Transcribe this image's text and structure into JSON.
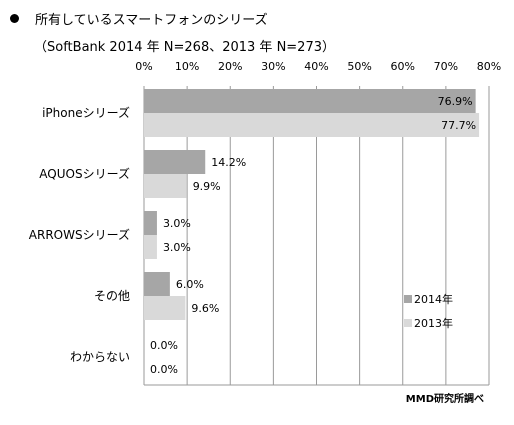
{
  "title": "所有しているスマートフォンのシリーズ",
  "subtitle": "（SoftBank 2014 年 N=268、2013 年 N=273）",
  "credit": "MMD研究所調べ",
  "chart_data": {
    "type": "bar",
    "orientation": "horizontal",
    "title": "所有しているスマートフォンのシリーズ",
    "subtitle": "（SoftBank 2014 年 N=268、2013 年 N=273）",
    "xlim": [
      0,
      80
    ],
    "xticks": [
      "0%",
      "10%",
      "20%",
      "30%",
      "40%",
      "50%",
      "60%",
      "70%",
      "80%"
    ],
    "tick_values": [
      0,
      10,
      20,
      30,
      40,
      50,
      60,
      70,
      80
    ],
    "grid": true,
    "legend_position": "bottom-right inside plot",
    "categories": [
      "iPhoneシリーズ",
      "AQUOSシリーズ",
      "ARROWSシリーズ",
      "その他",
      "わからない"
    ],
    "series": [
      {
        "name": "2014年",
        "color": "#a6a6a6",
        "values": [
          76.9,
          14.2,
          3.0,
          6.0,
          0.0
        ],
        "labels": [
          "76.9%",
          "14.2%",
          "3.0%",
          "6.0%",
          "0.0%"
        ]
      },
      {
        "name": "2013年",
        "color": "#d9d9d9",
        "values": [
          77.7,
          9.9,
          3.0,
          9.6,
          0.0
        ],
        "labels": [
          "77.7%",
          "9.9%",
          "3.0%",
          "9.6%",
          "0.0%"
        ]
      }
    ]
  }
}
